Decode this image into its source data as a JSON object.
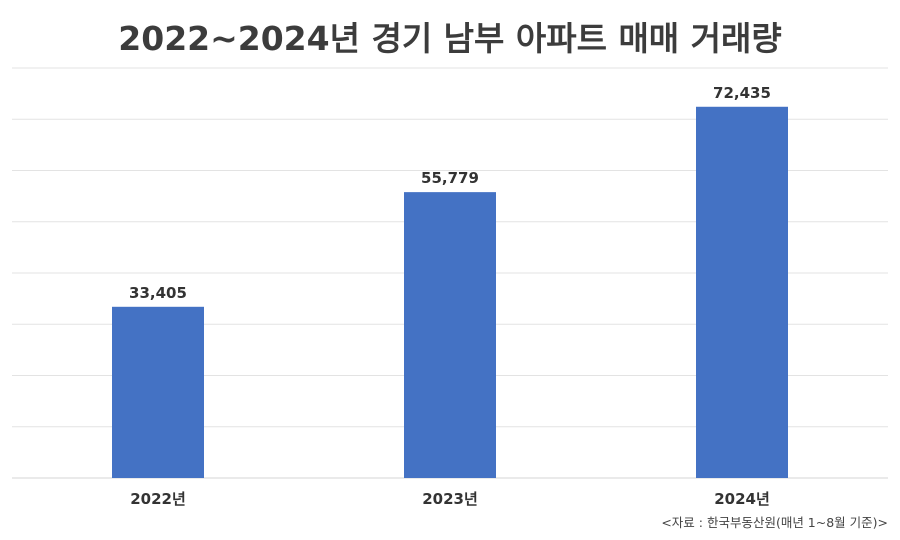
{
  "chart_data": {
    "type": "bar",
    "title": "2022~2024년 경기 남부 아파트 매매 거래량",
    "categories": [
      "2022년",
      "2023년",
      "2024년"
    ],
    "values": [
      33405,
      55779,
      72435
    ],
    "value_labels": [
      "33,405",
      "55,779",
      "72,435"
    ],
    "ylim": [
      0,
      80000
    ],
    "grid": true,
    "legend": "none",
    "bar_color": "#4472c4",
    "source": "<자료 : 한국부동산원(매년 1~8월 기준)>"
  }
}
